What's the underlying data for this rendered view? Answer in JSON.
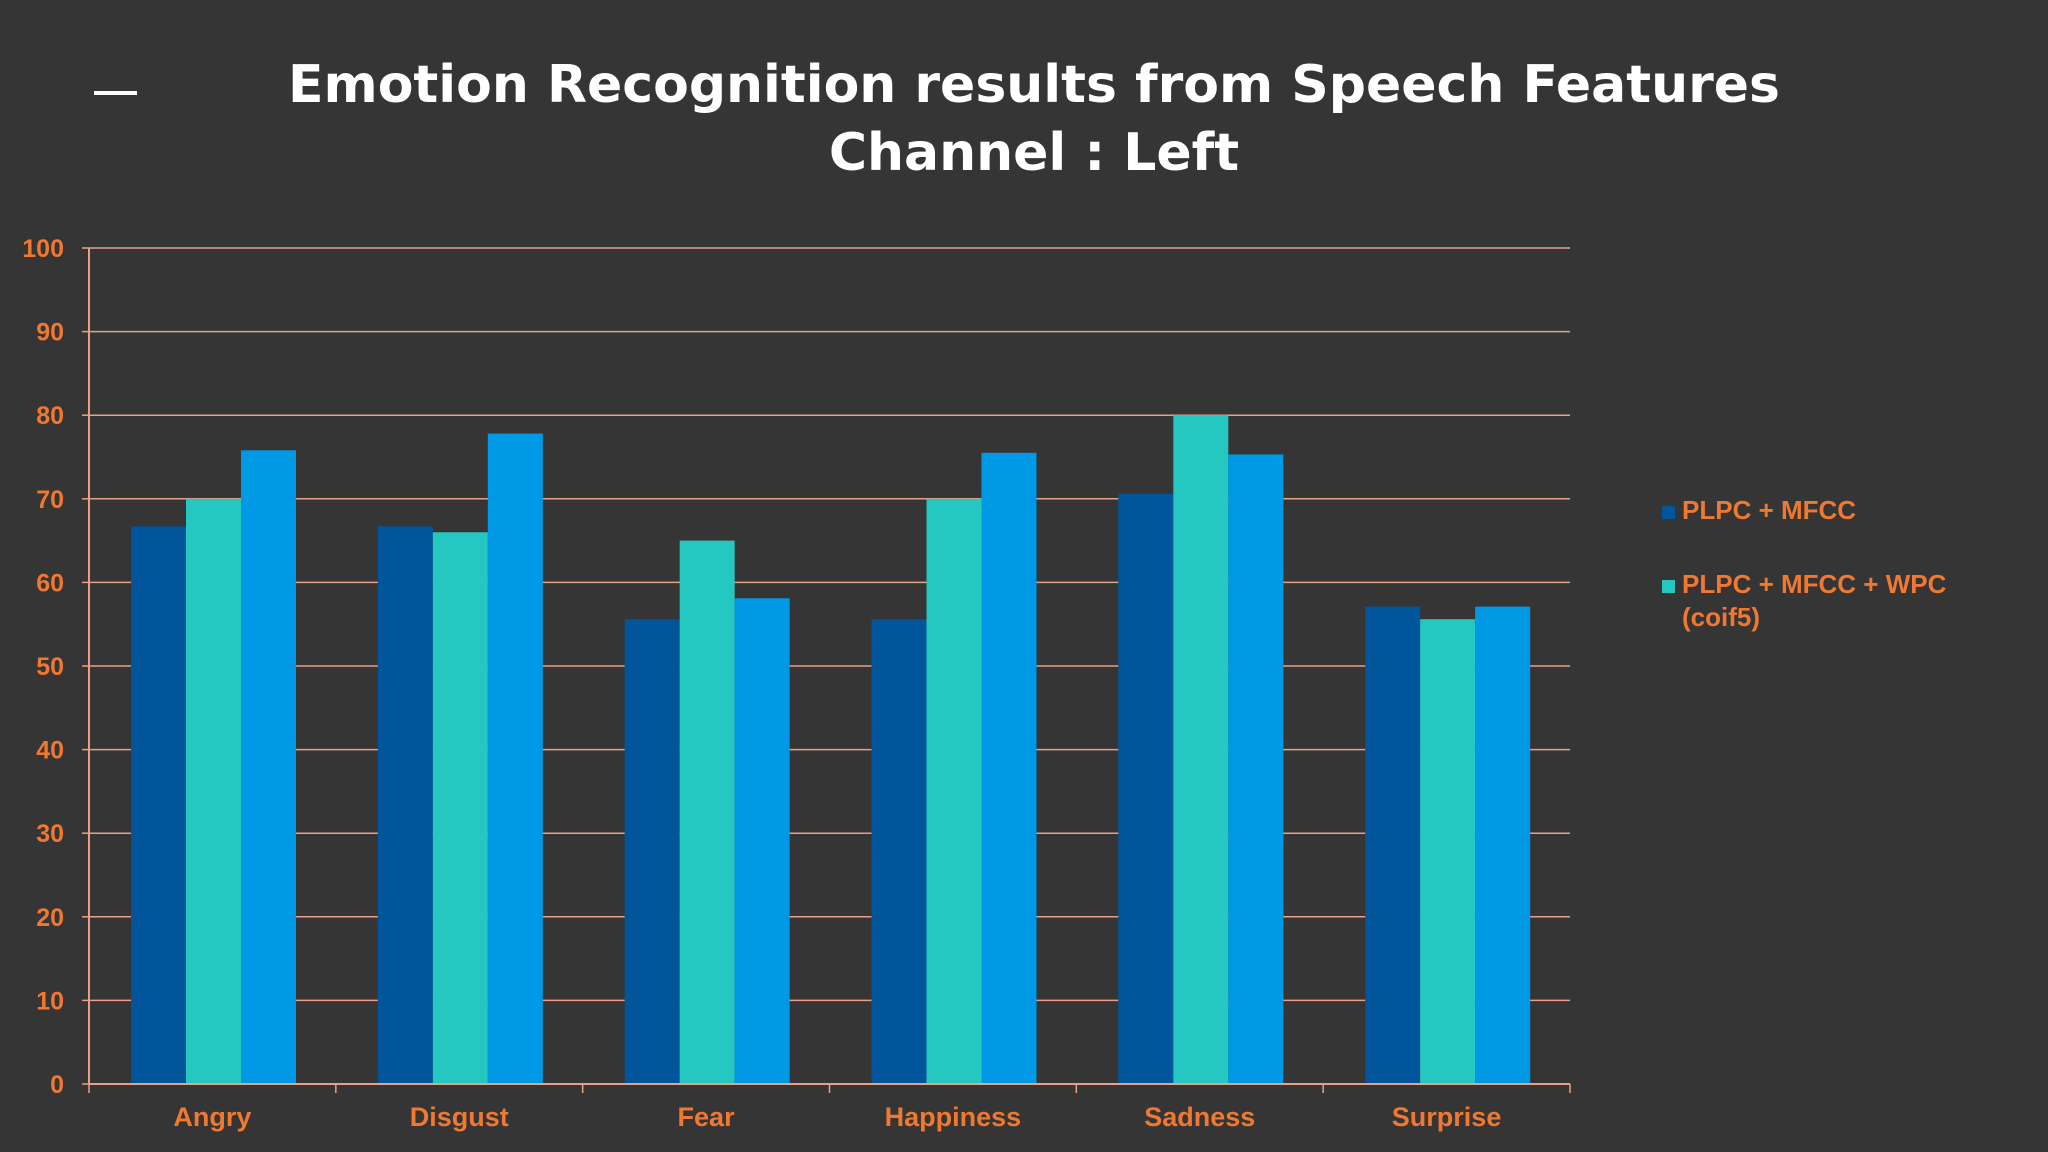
{
  "slide": {
    "title_line1": "Emotion Recognition results from Speech Features",
    "title_line2": "Channel : Left"
  },
  "colors": {
    "background": "#353535",
    "title": "#ffffff",
    "labels": "#f07830",
    "gridlines": "#e8a088"
  },
  "legend": {
    "items": [
      {
        "label": "PLPC + MFCC",
        "color": "#00559b"
      },
      {
        "label": "PLPC + MFCC + WPC\n(coif5)",
        "color": "#24c8c0"
      }
    ]
  },
  "chart_data": {
    "type": "bar",
    "title": "Emotion Recognition results from Speech Features Channel : Left",
    "categories": [
      "Angry",
      "Disgust",
      "Fear",
      "Happiness",
      "Sadness",
      "Surprise"
    ],
    "series": [
      {
        "name": "PLPC + MFCC",
        "color": "#00559b",
        "values": [
          66.7,
          66.7,
          55.6,
          55.6,
          70.6,
          57.1
        ]
      },
      {
        "name": "PLPC + MFCC + WPC (coif5)",
        "color": "#24c8c0",
        "values": [
          70,
          66,
          65,
          70,
          80,
          55.6
        ]
      },
      {
        "color": "#0099e6",
        "values": [
          75.8,
          77.8,
          58.1,
          75.5,
          75.3,
          57.1
        ]
      }
    ],
    "ylim": [
      0,
      100
    ],
    "yticks": [
      0,
      10,
      20,
      30,
      40,
      50,
      60,
      70,
      80,
      90,
      100
    ],
    "xlabel": "",
    "ylabel": "",
    "grid": true,
    "legend_position": "right"
  }
}
